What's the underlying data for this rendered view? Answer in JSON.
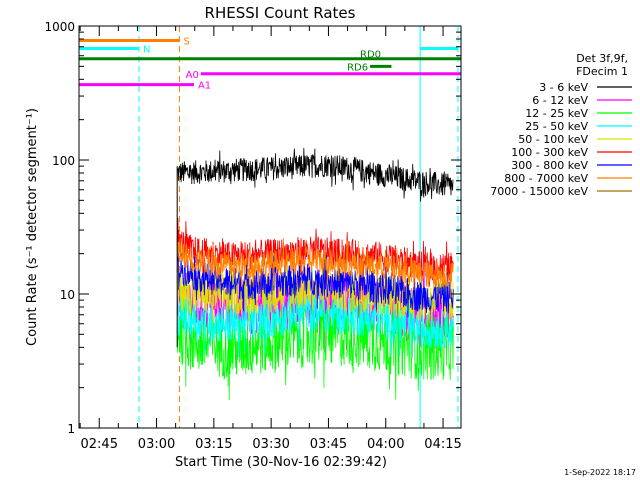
{
  "chart_data": {
    "type": "line",
    "title": "RHESSI Count Rates",
    "xlabel": "Start Time (30-Nov-16 02:39:42)",
    "ylabel": "Count Rate (s⁻¹ detector segment⁻¹)",
    "y_scale": "log",
    "ylim": [
      1,
      1000
    ],
    "xlim_minutes_after_start": [
      0,
      100
    ],
    "x_tick_labels": [
      "02:45",
      "03:00",
      "03:15",
      "03:30",
      "03:45",
      "04:00",
      "04:15"
    ],
    "y_tick_labels": [
      "1",
      "10",
      "100",
      "1000"
    ],
    "grid": false,
    "legend": {
      "placement": "right",
      "header": [
        "Det 3f,9f,",
        "FDecim 1"
      ],
      "entries": [
        {
          "label": "3 - 6 keV",
          "color": "#000000"
        },
        {
          "label": "6 - 12 keV",
          "color": "#ff00ff"
        },
        {
          "label": "12 - 25 keV",
          "color": "#00ff00"
        },
        {
          "label": "25 - 50 keV",
          "color": "#00ffff"
        },
        {
          "label": "50 - 100 keV",
          "color": "#e0e000"
        },
        {
          "label": "100 - 300 keV",
          "color": "#ff0000"
        },
        {
          "label": "300 - 800 keV",
          "color": "#0000ff"
        },
        {
          "label": "800 - 7000 keV",
          "color": "#ff8000"
        },
        {
          "label": "7000 - 15000 keV",
          "color": "#a07000"
        }
      ]
    },
    "series": [
      {
        "name": "3 - 6 keV",
        "color": "#000000",
        "x": [
          25.7,
          35,
          45,
          55,
          65,
          75,
          85,
          95,
          98
        ],
        "y": [
          80,
          82,
          85,
          88,
          92,
          82,
          72,
          65,
          63
        ]
      },
      {
        "name": "6 - 12 keV",
        "color": "#ff00ff",
        "x": [
          25.7,
          30,
          40,
          50,
          60,
          70,
          80,
          90,
          98
        ],
        "y": [
          9,
          8.5,
          8,
          8.5,
          9.5,
          8.5,
          8,
          6.5,
          6
        ]
      },
      {
        "name": "12 - 25 keV",
        "color": "#00ff00",
        "x": [
          25.7,
          30,
          40,
          50,
          60,
          70,
          80,
          90,
          98
        ],
        "y": [
          5.5,
          4.5,
          4,
          4.5,
          5,
          5,
          4.5,
          4,
          4
        ]
      },
      {
        "name": "25 - 50 keV",
        "color": "#00ffff",
        "x": [
          25.7,
          30,
          40,
          50,
          60,
          70,
          80,
          90,
          98
        ],
        "y": [
          7,
          6.5,
          6,
          6.5,
          7.5,
          7,
          6.5,
          5.5,
          5.5
        ]
      },
      {
        "name": "50 - 100 keV",
        "color": "#e0e000",
        "x": [
          25.7,
          30,
          40,
          50,
          60,
          70,
          80,
          90,
          98
        ],
        "y": [
          11,
          10,
          10,
          10.5,
          11,
          10.5,
          10,
          9,
          9
        ]
      },
      {
        "name": "100 - 300 keV",
        "color": "#ff0000",
        "x": [
          25.7,
          30,
          40,
          50,
          60,
          70,
          80,
          90,
          98
        ],
        "y": [
          25,
          21,
          19,
          20,
          21,
          20,
          19,
          16,
          16
        ]
      },
      {
        "name": "300 - 800 keV",
        "color": "#0000ff",
        "x": [
          25.7,
          30,
          40,
          50,
          60,
          70,
          80,
          90,
          98
        ],
        "y": [
          16,
          14,
          12,
          12,
          13,
          12,
          11,
          9.5,
          9.5
        ]
      },
      {
        "name": "800 - 7000 keV",
        "color": "#ff8000",
        "x": [
          25.7,
          30,
          40,
          50,
          60,
          70,
          80,
          90,
          98
        ],
        "y": [
          21,
          18,
          16,
          17,
          18,
          17,
          16,
          14,
          14
        ]
      }
    ],
    "vertical_lines": [
      {
        "x": 0,
        "color": "#00ffff",
        "style": "solid"
      },
      {
        "x": 15.7,
        "color": "#00ffff",
        "style": "dashed"
      },
      {
        "x": 26.3,
        "color": "#ff8000",
        "style": "dashed"
      },
      {
        "x": 89.3,
        "color": "#00ffff",
        "style": "solid"
      },
      {
        "x": 99.2,
        "color": "#00ffff",
        "style": "dashed"
      }
    ],
    "flag_bars": [
      {
        "label": "S",
        "color": "#ff8000",
        "x_start": 0,
        "x_end": 26.3,
        "y": 780
      },
      {
        "label": "N",
        "color": "#00ffff",
        "x_start": 0,
        "x_end": 15.7,
        "y": 680
      },
      {
        "label": "",
        "color": "#00ffff",
        "x_start": 89.3,
        "x_end": 99.2,
        "y": 680
      },
      {
        "label": "RD0",
        "color": "#008000",
        "x_start": 0,
        "x_end": 100,
        "y": 570
      },
      {
        "label": "RD6",
        "color": "#008000",
        "x_start": 76.2,
        "x_end": 81.8,
        "y": 500
      },
      {
        "label": "A0",
        "color": "#ff00ff",
        "x_start": 31.9,
        "x_end": 100,
        "y": 440
      },
      {
        "label": "A1",
        "color": "#ff00ff",
        "x_start": 0,
        "x_end": 30.1,
        "y": 365
      }
    ],
    "footer_date": "1-Sep-2022 18:17"
  }
}
